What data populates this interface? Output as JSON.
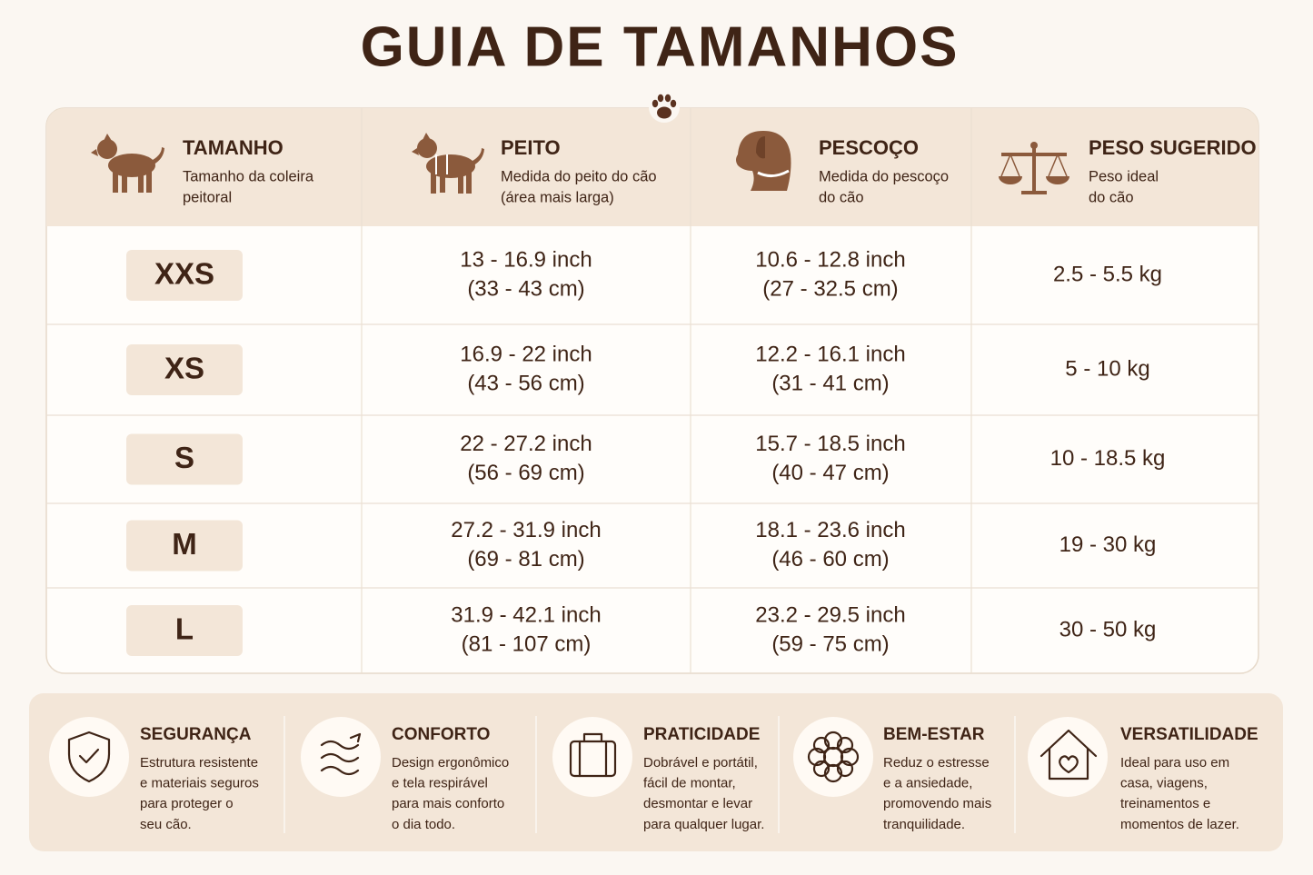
{
  "title": "GUIA DE TAMANHOS",
  "table": {
    "columns": [
      {
        "title": "TAMANHO",
        "subtitle": [
          "Tamanho da coleira",
          "peitoral"
        ]
      },
      {
        "title": "PEITO",
        "subtitle": [
          "Medida do peito do cão",
          "(área mais larga)"
        ]
      },
      {
        "title": "PESCOÇO",
        "subtitle": [
          "Medida do pescoço",
          "do cão"
        ]
      },
      {
        "title": "PESO SUGERIDO",
        "subtitle": [
          "Peso ideal",
          "do cão"
        ]
      }
    ],
    "rows": [
      {
        "size": "XXS",
        "chest": [
          "13 - 16.9 inch",
          "(33 - 43 cm)"
        ],
        "neck": [
          "10.6 - 12.8 inch",
          "(27 - 32.5 cm)"
        ],
        "weight": "2.5 - 5.5 kg"
      },
      {
        "size": "XS",
        "chest": [
          "16.9 - 22 inch",
          "(43 - 56 cm)"
        ],
        "neck": [
          "12.2 - 16.1 inch",
          "(31 - 41 cm)"
        ],
        "weight": "5 - 10 kg"
      },
      {
        "size": "S",
        "chest": [
          "22 - 27.2 inch",
          "(56 - 69 cm)"
        ],
        "neck": [
          "15.7 - 18.5 inch",
          "(40 - 47 cm)"
        ],
        "weight": "10 - 18.5 kg"
      },
      {
        "size": "M",
        "chest": [
          "27.2 - 31.9 inch",
          "(69 - 81 cm)"
        ],
        "neck": [
          "18.1 - 23.6 inch",
          "(46 - 60 cm)"
        ],
        "weight": "19 - 30 kg"
      },
      {
        "size": "L",
        "chest": [
          "31.9 - 42.1 inch",
          "(81 - 107 cm)"
        ],
        "neck": [
          "23.2 - 29.5 inch",
          "(59 - 75 cm)"
        ],
        "weight": "30 - 50 kg"
      }
    ]
  },
  "features": [
    {
      "title": "SEGURANÇA",
      "description": [
        "Estrutura resistente",
        "e materiais seguros",
        "para proteger o",
        "seu cão."
      ]
    },
    {
      "title": "CONFORTO",
      "description": [
        "Design ergonômico",
        "e tela respirável",
        "para mais conforto",
        "o dia todo."
      ]
    },
    {
      "title": "PRATICIDADE",
      "description": [
        "Dobrável e portátil,",
        "fácil de montar,",
        "desmontar e levar",
        "para qualquer lugar."
      ]
    },
    {
      "title": "BEM-ESTAR",
      "description": [
        "Reduz o estresse",
        "e a ansiedade,",
        "promovendo mais",
        "tranquilidade."
      ]
    },
    {
      "title": "VERSATILIDADE",
      "description": [
        "Ideal para uso em",
        "casa, viagens,",
        "treinamentos e",
        "momentos de lazer."
      ]
    }
  ]
}
